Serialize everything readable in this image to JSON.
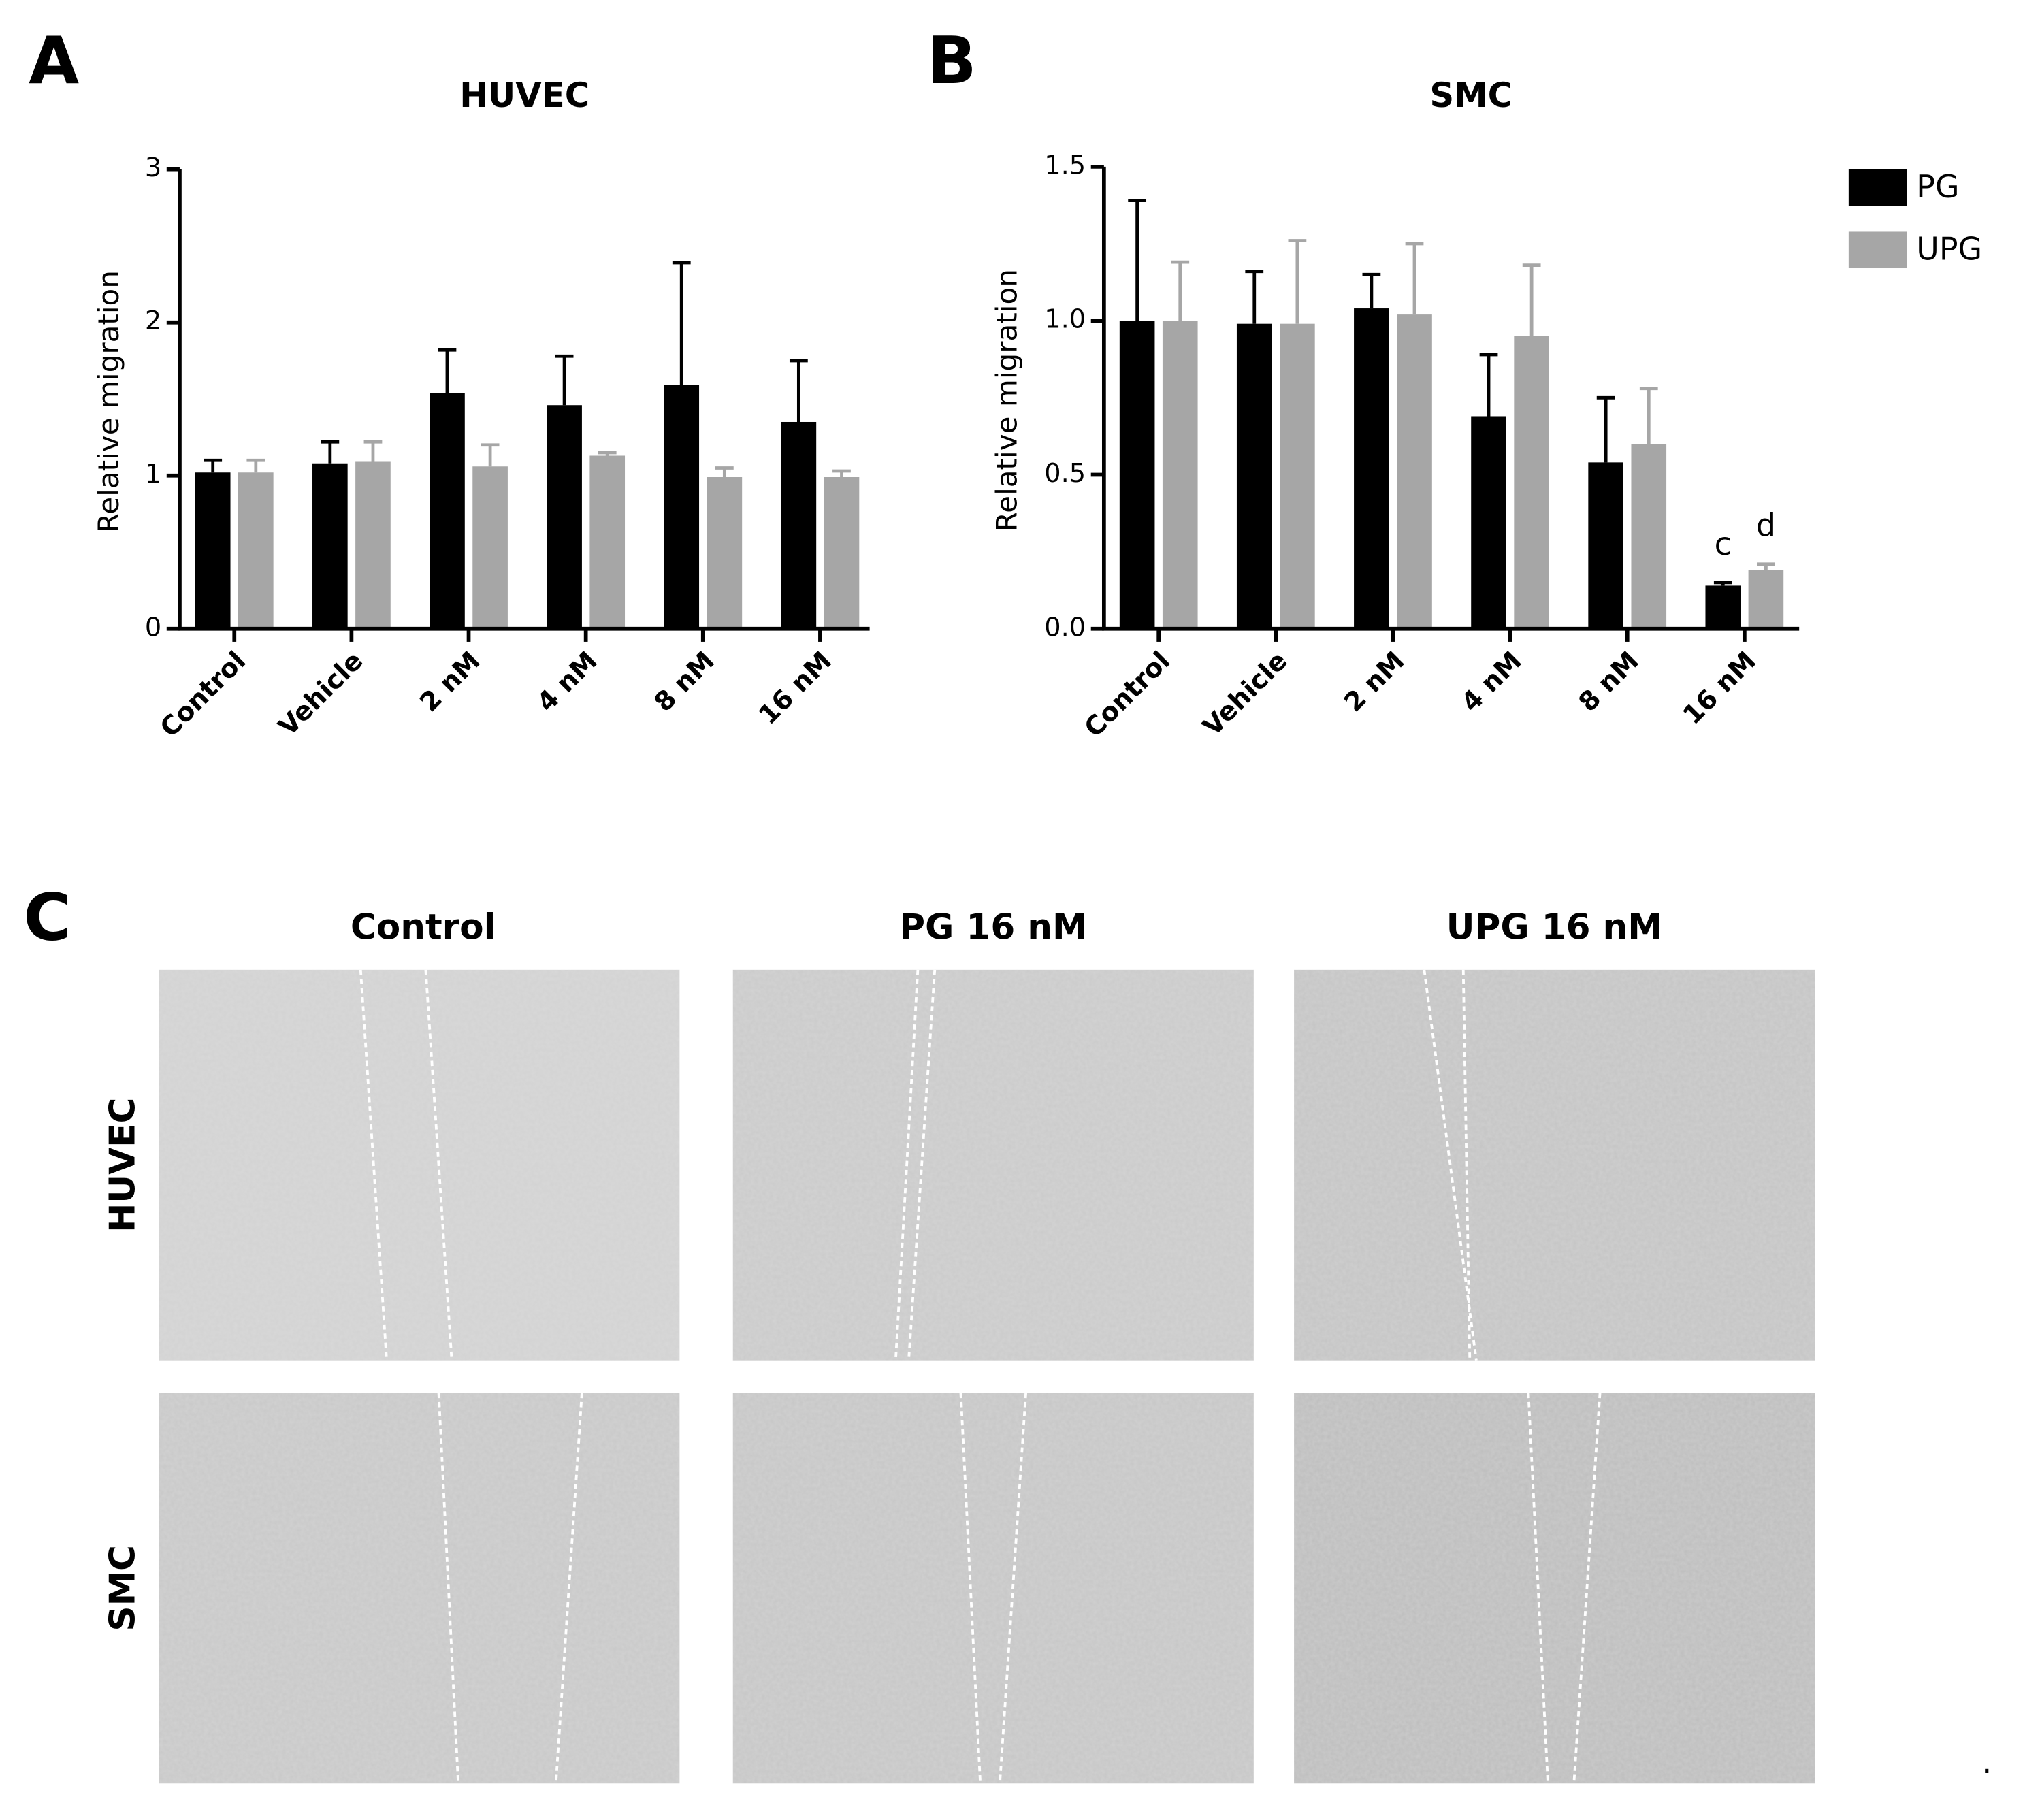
{
  "panels": [
    "A",
    "B",
    "C"
  ],
  "chart_data": [
    {
      "type": "bar",
      "title": "HUVEC",
      "y_label": "Relative migration",
      "categories": [
        "Control",
        "Vehicle",
        "2 nM",
        "4 nM",
        "8 nM",
        "16 nM"
      ],
      "series": [
        {
          "name": "PG",
          "color": "#000000",
          "values": [
            1.02,
            1.08,
            1.54,
            1.46,
            1.59,
            1.35
          ],
          "errors": [
            0.08,
            0.14,
            0.28,
            0.32,
            0.8,
            0.4
          ]
        },
        {
          "name": "UPG",
          "color": "#a6a6a6",
          "values": [
            1.02,
            1.09,
            1.06,
            1.13,
            0.99,
            0.99
          ],
          "errors": [
            0.08,
            0.13,
            0.14,
            0.02,
            0.06,
            0.04
          ]
        }
      ],
      "ylim": [
        0,
        3
      ],
      "yticks": [
        0,
        1,
        2,
        3
      ]
    },
    {
      "type": "bar",
      "title": "SMC",
      "y_label": "Relative migration",
      "categories": [
        "Control",
        "Vehicle",
        "2 nM",
        "4 nM",
        "8 nM",
        "16 nM"
      ],
      "series": [
        {
          "name": "PG",
          "color": "#000000",
          "values": [
            1.0,
            0.99,
            1.04,
            0.69,
            0.54,
            0.14
          ],
          "errors": [
            0.39,
            0.17,
            0.11,
            0.2,
            0.21,
            0.01
          ]
        },
        {
          "name": "UPG",
          "color": "#a6a6a6",
          "values": [
            1.0,
            0.99,
            1.02,
            0.95,
            0.6,
            0.19
          ],
          "errors": [
            0.19,
            0.27,
            0.23,
            0.23,
            0.18,
            0.02
          ]
        }
      ],
      "annotations": [
        "c",
        "d"
      ],
      "ylim": [
        0,
        1.5
      ],
      "yticks": [
        {
          "value": 0,
          "label": "0.0"
        },
        0.5,
        {
          "value": 1,
          "label": "1.0"
        },
        1.5
      ],
      "legend": "right"
    }
  ],
  "image_grid": {
    "columns": [
      "Control",
      "PG 16 nM",
      "UPG 16 nM"
    ],
    "rows": [
      "HUVEC",
      "SMC"
    ]
  },
  "footnote": "."
}
